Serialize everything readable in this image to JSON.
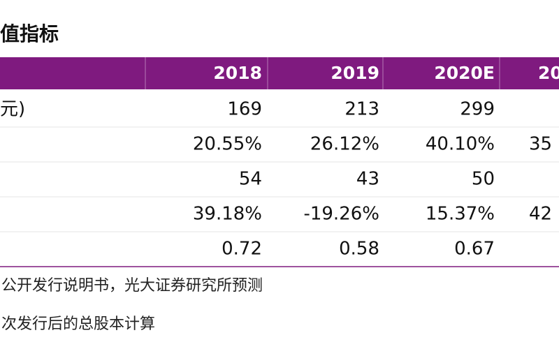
{
  "title": "值指标",
  "table": {
    "header": [
      "2018",
      "2019",
      "2020E",
      "20"
    ],
    "rows": [
      {
        "label": "元)",
        "cells": [
          "169",
          "213",
          "299"
        ]
      },
      {
        "cells": [
          "20.55%",
          "26.12%",
          "40.10%",
          "35"
        ]
      },
      {
        "cells": [
          "54",
          "43",
          "50"
        ]
      },
      {
        "cells": [
          "39.18%",
          "-19.26%",
          "15.37%",
          "42"
        ]
      },
      {
        "cells": [
          "0.72",
          "0.58",
          "0.67"
        ]
      }
    ]
  },
  "notes": [
    "公开发行说明书，光大证券研究所预测",
    "次发行后的总股本计算"
  ]
}
